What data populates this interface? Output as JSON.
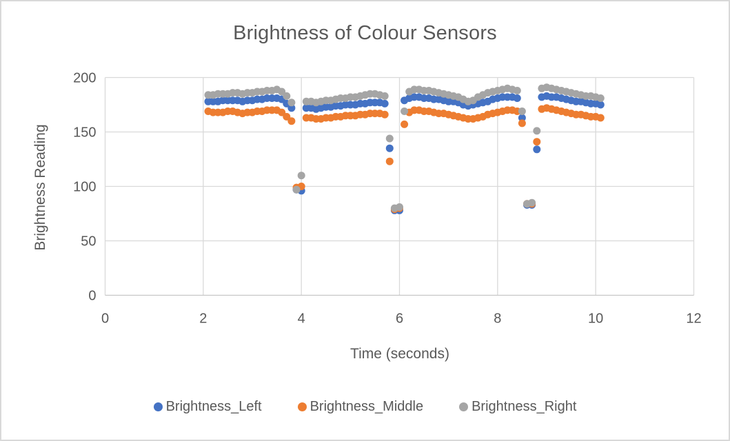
{
  "styles": {
    "text_color": "#595959",
    "grid_color": "#D9D9D9",
    "axis_line_color": "#C6C6C6",
    "frame_border_color": "#D9D9D9",
    "background": "#FFFFFF"
  },
  "chart_data": {
    "type": "scatter",
    "title": "Brightness of Colour Sensors",
    "xlabel": "Time (seconds)",
    "ylabel": "Brightness Reading",
    "xlim": [
      0,
      12
    ],
    "ylim": [
      0,
      200
    ],
    "x_ticks": [
      0,
      2,
      4,
      6,
      8,
      10,
      12
    ],
    "y_ticks": [
      0,
      50,
      100,
      150,
      200
    ],
    "grid": true,
    "legend_position": "bottom",
    "marker_radius_px": 5.5,
    "x": [
      2.1,
      2.2,
      2.3,
      2.4,
      2.5,
      2.6,
      2.7,
      2.8,
      2.9,
      3.0,
      3.1,
      3.2,
      3.3,
      3.4,
      3.5,
      3.6,
      3.7,
      3.8,
      3.9,
      4.0,
      4.1,
      4.2,
      4.3,
      4.4,
      4.5,
      4.6,
      4.7,
      4.8,
      4.9,
      5.0,
      5.1,
      5.2,
      5.3,
      5.4,
      5.5,
      5.6,
      5.7,
      5.8,
      5.9,
      6.0,
      6.1,
      6.2,
      6.3,
      6.4,
      6.5,
      6.6,
      6.7,
      6.8,
      6.9,
      7.0,
      7.1,
      7.2,
      7.3,
      7.4,
      7.5,
      7.6,
      7.7,
      7.8,
      7.9,
      8.0,
      8.1,
      8.2,
      8.3,
      8.4,
      8.5,
      8.6,
      8.7,
      8.8,
      8.9,
      9.0,
      9.1,
      9.2,
      9.3,
      9.4,
      9.5,
      9.6,
      9.7,
      9.8,
      9.9,
      10.0,
      10.1
    ],
    "series": [
      {
        "name": "Brightness_Left",
        "color": "#4472C4",
        "values": [
          178,
          178,
          178,
          179,
          179,
          179,
          179,
          178,
          179,
          179,
          180,
          180,
          181,
          181,
          181,
          180,
          176,
          172,
          97,
          96,
          172,
          172,
          171,
          172,
          173,
          173,
          174,
          174,
          175,
          175,
          175,
          176,
          176,
          177,
          177,
          177,
          176,
          135,
          78,
          78,
          179,
          181,
          182,
          182,
          181,
          181,
          180,
          180,
          179,
          178,
          178,
          177,
          175,
          174,
          175,
          176,
          177,
          178,
          180,
          181,
          182,
          182,
          182,
          181,
          163,
          83,
          83,
          134,
          182,
          183,
          182,
          182,
          181,
          180,
          179,
          178,
          178,
          177,
          176,
          176,
          175
        ]
      },
      {
        "name": "Brightness_Middle",
        "color": "#ED7D31",
        "values": [
          169,
          168,
          168,
          168,
          169,
          169,
          168,
          167,
          168,
          168,
          169,
          169,
          170,
          170,
          170,
          168,
          164,
          160,
          99,
          100,
          163,
          163,
          162,
          162,
          163,
          163,
          164,
          164,
          165,
          165,
          165,
          166,
          166,
          167,
          167,
          167,
          166,
          123,
          79,
          80,
          157,
          168,
          170,
          170,
          169,
          169,
          168,
          167,
          167,
          166,
          165,
          164,
          163,
          162,
          162,
          163,
          164,
          166,
          167,
          168,
          169,
          170,
          170,
          169,
          158,
          84,
          84,
          141,
          171,
          172,
          171,
          170,
          169,
          168,
          167,
          166,
          166,
          165,
          164,
          164,
          163
        ]
      },
      {
        "name": "Brightness_Right",
        "color": "#A5A5A5",
        "values": [
          184,
          184,
          185,
          185,
          185,
          186,
          186,
          185,
          186,
          186,
          187,
          187,
          188,
          188,
          189,
          187,
          183,
          177,
          97,
          110,
          178,
          178,
          177,
          178,
          179,
          179,
          180,
          181,
          181,
          182,
          182,
          183,
          184,
          185,
          185,
          184,
          183,
          144,
          80,
          81,
          169,
          187,
          189,
          189,
          188,
          188,
          187,
          186,
          185,
          184,
          183,
          182,
          180,
          178,
          179,
          182,
          184,
          186,
          187,
          188,
          189,
          190,
          189,
          188,
          169,
          84,
          85,
          151,
          190,
          191,
          190,
          189,
          188,
          187,
          186,
          185,
          184,
          183,
          183,
          182,
          181
        ]
      }
    ]
  }
}
